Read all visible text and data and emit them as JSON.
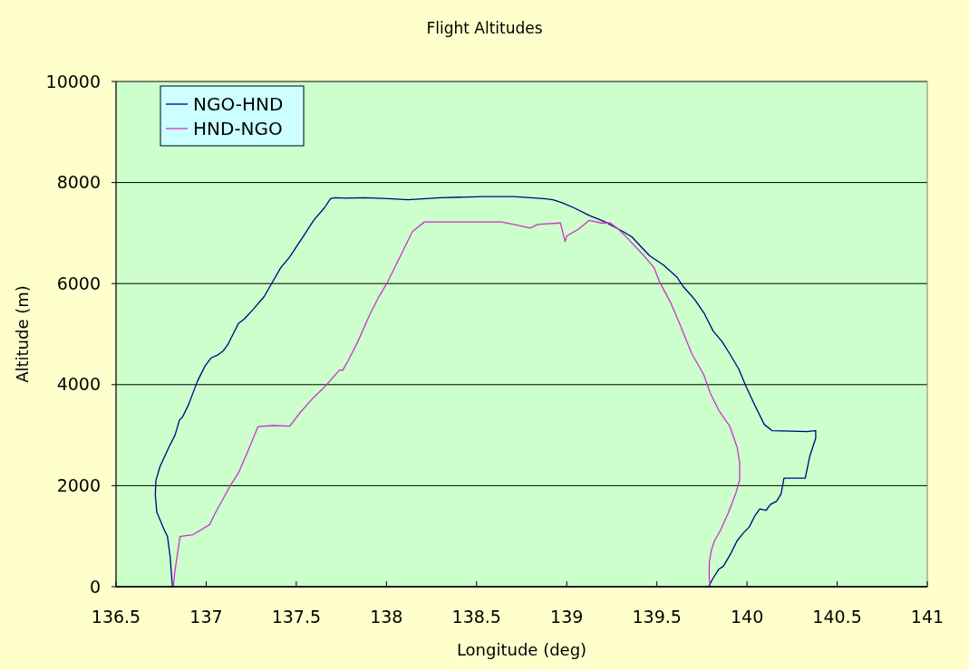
{
  "chart_data": {
    "type": "line",
    "title": "Flight Altitudes",
    "xlabel": "Longitude (deg)",
    "ylabel": "Altitude (m)",
    "xlim": [
      136.5,
      141
    ],
    "xticks": [
      136.5,
      137,
      137.5,
      138,
      138.5,
      139,
      139.5,
      140,
      140.5,
      141
    ],
    "ylim": [
      0,
      10000
    ],
    "yticks": [
      0,
      2000,
      4000,
      6000,
      8000,
      10000
    ],
    "grid": "y",
    "legend": "top left",
    "series": [
      {
        "name": "NGO-HND",
        "color": "#000080",
        "x": [
          136.813,
          136.8,
          136.785,
          136.768,
          136.726,
          136.718,
          136.721,
          136.743,
          136.793,
          136.827,
          136.852,
          136.869,
          136.902,
          136.952,
          136.994,
          137.028,
          137.061,
          137.095,
          137.12,
          137.145,
          137.179,
          137.212,
          137.263,
          137.321,
          137.355,
          137.413,
          137.464,
          137.506,
          137.547,
          137.598,
          137.656,
          137.69,
          137.715,
          137.774,
          137.874,
          138.008,
          138.119,
          138.3,
          138.538,
          138.706,
          138.873,
          138.923,
          138.974,
          139.04,
          139.124,
          139.208,
          139.292,
          139.359,
          139.46,
          139.535,
          139.611,
          139.644,
          139.711,
          139.761,
          139.812,
          139.862,
          139.904,
          139.954,
          139.996,
          140.046,
          140.096,
          140.138,
          140.239,
          140.331,
          140.381,
          140.381,
          140.348,
          140.323,
          140.264,
          140.205,
          140.197,
          140.189,
          140.164,
          140.13,
          140.105,
          140.071,
          140.046,
          140.012,
          139.979,
          139.945,
          139.912,
          139.87,
          139.845,
          139.812,
          139.787
        ],
        "values": [
          0,
          600,
          1000,
          1120,
          1480,
          1810,
          2100,
          2370,
          2760,
          3000,
          3300,
          3360,
          3600,
          4070,
          4370,
          4530,
          4580,
          4670,
          4790,
          4970,
          5210,
          5300,
          5500,
          5740,
          5950,
          6310,
          6530,
          6760,
          6980,
          7260,
          7500,
          7680,
          7700,
          7690,
          7700,
          7680,
          7660,
          7700,
          7720,
          7720,
          7680,
          7660,
          7600,
          7500,
          7350,
          7230,
          7070,
          6930,
          6550,
          6370,
          6130,
          5950,
          5680,
          5420,
          5060,
          4850,
          4610,
          4310,
          3950,
          3570,
          3210,
          3090,
          3080,
          3070,
          3090,
          2940,
          2580,
          2150,
          2150,
          2150,
          1990,
          1840,
          1690,
          1630,
          1510,
          1540,
          1420,
          1180,
          1060,
          910,
          670,
          410,
          350,
          170,
          0
        ]
      },
      {
        "name": "HND-NGO",
        "color": "#cc33cc",
        "x": [
          139.795,
          139.79,
          139.791,
          139.803,
          139.82,
          139.853,
          139.895,
          139.937,
          139.959,
          139.959,
          139.945,
          139.904,
          139.845,
          139.795,
          139.761,
          139.694,
          139.619,
          139.577,
          139.518,
          139.485,
          139.426,
          139.342,
          139.292,
          139.242,
          139.191,
          139.124,
          139.066,
          138.999,
          138.991,
          138.965,
          138.839,
          138.798,
          138.706,
          138.638,
          138.211,
          138.144,
          138.005,
          137.958,
          137.908,
          137.841,
          137.79,
          137.757,
          137.74,
          137.656,
          137.589,
          137.522,
          137.464,
          137.371,
          137.288,
          137.237,
          137.179,
          137.137,
          137.045,
          137.02,
          136.927,
          136.869,
          136.855,
          136.827,
          136.818
        ],
        "values": [
          0,
          200,
          500,
          730,
          910,
          1120,
          1450,
          1840,
          2110,
          2460,
          2760,
          3180,
          3480,
          3840,
          4190,
          4610,
          5270,
          5620,
          6010,
          6310,
          6560,
          6880,
          7060,
          7200,
          7200,
          7250,
          7080,
          6940,
          6830,
          7200,
          7170,
          7100,
          7170,
          7220,
          7220,
          7030,
          6020,
          5740,
          5390,
          4850,
          4490,
          4280,
          4290,
          3950,
          3720,
          3450,
          3180,
          3190,
          3170,
          2730,
          2250,
          2020,
          1420,
          1230,
          1030,
          1000,
          990,
          320,
          0
        ]
      }
    ]
  }
}
